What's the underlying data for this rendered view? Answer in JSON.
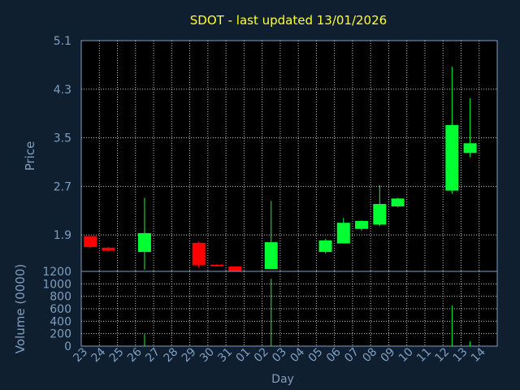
{
  "chart_data": {
    "type": "candlestick",
    "title": "SDOT - last updated 13/01/2026",
    "colors": {
      "background": "#0f1f30",
      "plot_background": "#000000",
      "title": "#ffff33",
      "axis_text": "#7f9fbf",
      "up": "#00ff33",
      "down": "#ff0000",
      "grid": "#c8c8c8"
    },
    "xlabel": "Day",
    "x_ticks": [
      "23",
      "24",
      "25",
      "26",
      "27",
      "28",
      "29",
      "30",
      "31",
      "01",
      "02",
      "03",
      "04",
      "05",
      "06",
      "07",
      "08",
      "09",
      "10",
      "11",
      "12",
      "13",
      "14"
    ],
    "price": {
      "ylabel": "Price",
      "ylim": [
        1.3,
        5.1
      ],
      "y_ticks": [
        "1.9",
        "2.7",
        "3.5",
        "4.3",
        "5.1"
      ],
      "candles": [
        {
          "day": "23",
          "open": 1.88,
          "close": 1.7,
          "high": 1.88,
          "low": 1.68
        },
        {
          "day": "24",
          "open": 1.69,
          "close": 1.64,
          "high": 1.7,
          "low": 1.63
        },
        {
          "day": "26",
          "open": 1.62,
          "close": 1.93,
          "high": 2.51,
          "low": 1.33
        },
        {
          "day": "29",
          "open": 1.77,
          "close": 1.4,
          "high": 1.79,
          "low": 1.36
        },
        {
          "day": "30",
          "open": 1.41,
          "close": 1.39,
          "high": 1.42,
          "low": 1.38
        },
        {
          "day": "31",
          "open": 1.38,
          "close": 1.3,
          "high": 1.38,
          "low": 1.3
        },
        {
          "day": "02",
          "open": 1.34,
          "close": 1.78,
          "high": 2.46,
          "low": 1.34
        },
        {
          "day": "05",
          "open": 1.62,
          "close": 1.81,
          "high": 1.83,
          "low": 1.6
        },
        {
          "day": "06",
          "open": 1.76,
          "close": 2.1,
          "high": 2.18,
          "low": 1.76
        },
        {
          "day": "07",
          "open": 2.0,
          "close": 2.13,
          "high": 2.14,
          "low": 1.97
        },
        {
          "day": "08",
          "open": 2.07,
          "close": 2.41,
          "high": 2.72,
          "low": 2.05
        },
        {
          "day": "09",
          "open": 2.37,
          "close": 2.5,
          "high": 2.51,
          "low": 2.36
        },
        {
          "day": "12",
          "open": 2.63,
          "close": 3.71,
          "high": 4.67,
          "low": 2.58
        },
        {
          "day": "13",
          "open": 3.25,
          "close": 3.41,
          "high": 4.15,
          "low": 3.18
        }
      ]
    },
    "volume": {
      "ylabel": "Volume (0000)",
      "ylim": [
        0,
        1200
      ],
      "y_ticks": [
        "0",
        "200",
        "400",
        "600",
        "800",
        "1000",
        "1200"
      ],
      "bars": [
        {
          "day": "26",
          "value": 190
        },
        {
          "day": "02",
          "value": 1080
        },
        {
          "day": "12",
          "value": 650
        },
        {
          "day": "13",
          "value": 80
        }
      ]
    }
  }
}
